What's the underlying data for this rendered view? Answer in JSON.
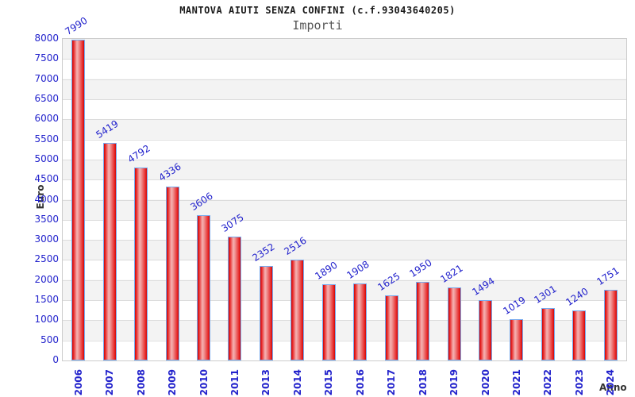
{
  "chart_data": {
    "type": "bar",
    "title": "MANTOVA AIUTI SENZA CONFINI (c.f.93043640205)",
    "subtitle": "Importi",
    "xlabel": "Anno",
    "ylabel": "Euro",
    "categories": [
      "2006",
      "2007",
      "2008",
      "2009",
      "2010",
      "2011",
      "2013",
      "2014",
      "2015",
      "2016",
      "2017",
      "2018",
      "2019",
      "2020",
      "2021",
      "2022",
      "2023",
      "2024"
    ],
    "values": [
      7990,
      5419,
      4792,
      4336,
      3606,
      3075,
      2352,
      2516,
      1890,
      1908,
      1625,
      1950,
      1821,
      1494,
      1019,
      1301,
      1240,
      1751
    ],
    "ylim": [
      0,
      8000
    ],
    "ytick_step": 500,
    "grid": true,
    "legend": null,
    "layout": {
      "value_labels": "above-bars-rotated",
      "x_labels": "vertical",
      "background_bands": "alternating"
    },
    "colors": {
      "label": "#2222cc",
      "title": "#1a1a1a",
      "subtitle": "#555555",
      "axis_text": "#333333",
      "grid": "#dcdcdc",
      "band": "#f3f3f3",
      "plot_border": "#cccccc",
      "bar_border": "#77aaee",
      "bar_edge": "#c90909",
      "bar_bright": "#e62222",
      "bar_highlight": "#f6b3b3",
      "bar_mid": "#ef8f8f"
    }
  }
}
